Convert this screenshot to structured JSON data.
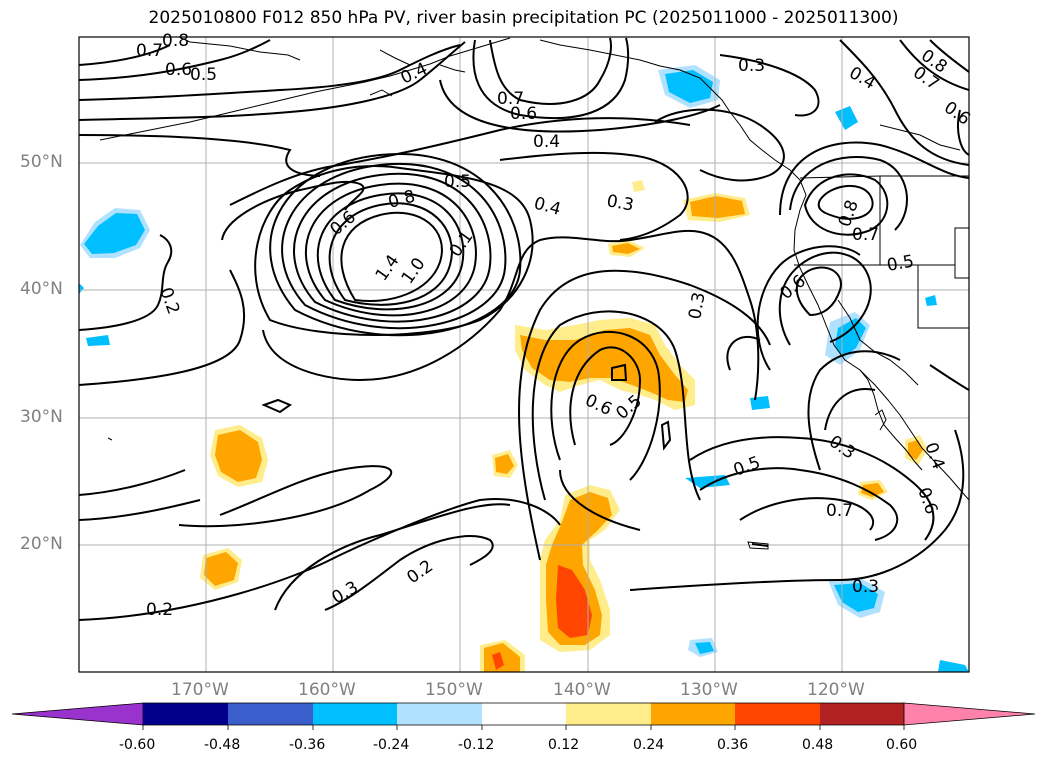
{
  "title": "2025010800 F012 850 hPa PV, river basin precipitation PC (2025011000 - 2025011300)",
  "lat_labels": [
    "50°N",
    "40°N",
    "30°N",
    "20°N"
  ],
  "lon_labels": [
    "170°W",
    "160°W",
    "150°W",
    "140°W",
    "130°W",
    "120°W"
  ],
  "colorbar": {
    "ticks": [
      "-0.60",
      "-0.48",
      "-0.36",
      "-0.24",
      "-0.12",
      "0.12",
      "0.24",
      "0.36",
      "0.48",
      "0.60"
    ],
    "colors": [
      "#9a32cd",
      "#00008b",
      "#3a5fcd",
      "#00bfff",
      "#b0e2ff",
      "#ffffff",
      "#ffec8b",
      "#ffa500",
      "#ff4500",
      "#b22222",
      "#ff82ab"
    ]
  },
  "contour_labels": [
    "0.8",
    "0.7",
    "0.6",
    "0.5",
    "0.4",
    "0.7",
    "0.6",
    "0.3",
    "0.4",
    "0.8",
    "0.7",
    "0.6",
    "0.4",
    "0.5",
    "0.4",
    "0.3",
    "0.8",
    "0.6",
    "0.1",
    "1.4",
    "1.0",
    "0.8",
    "0.7",
    "0.5",
    "0.3",
    "0.6",
    "0.2",
    "0.6",
    "0.5",
    "0.5",
    "0.3",
    "0.4",
    "0.6",
    "0.7",
    "0.2",
    "0.3",
    "0.3",
    "0.2"
  ]
}
